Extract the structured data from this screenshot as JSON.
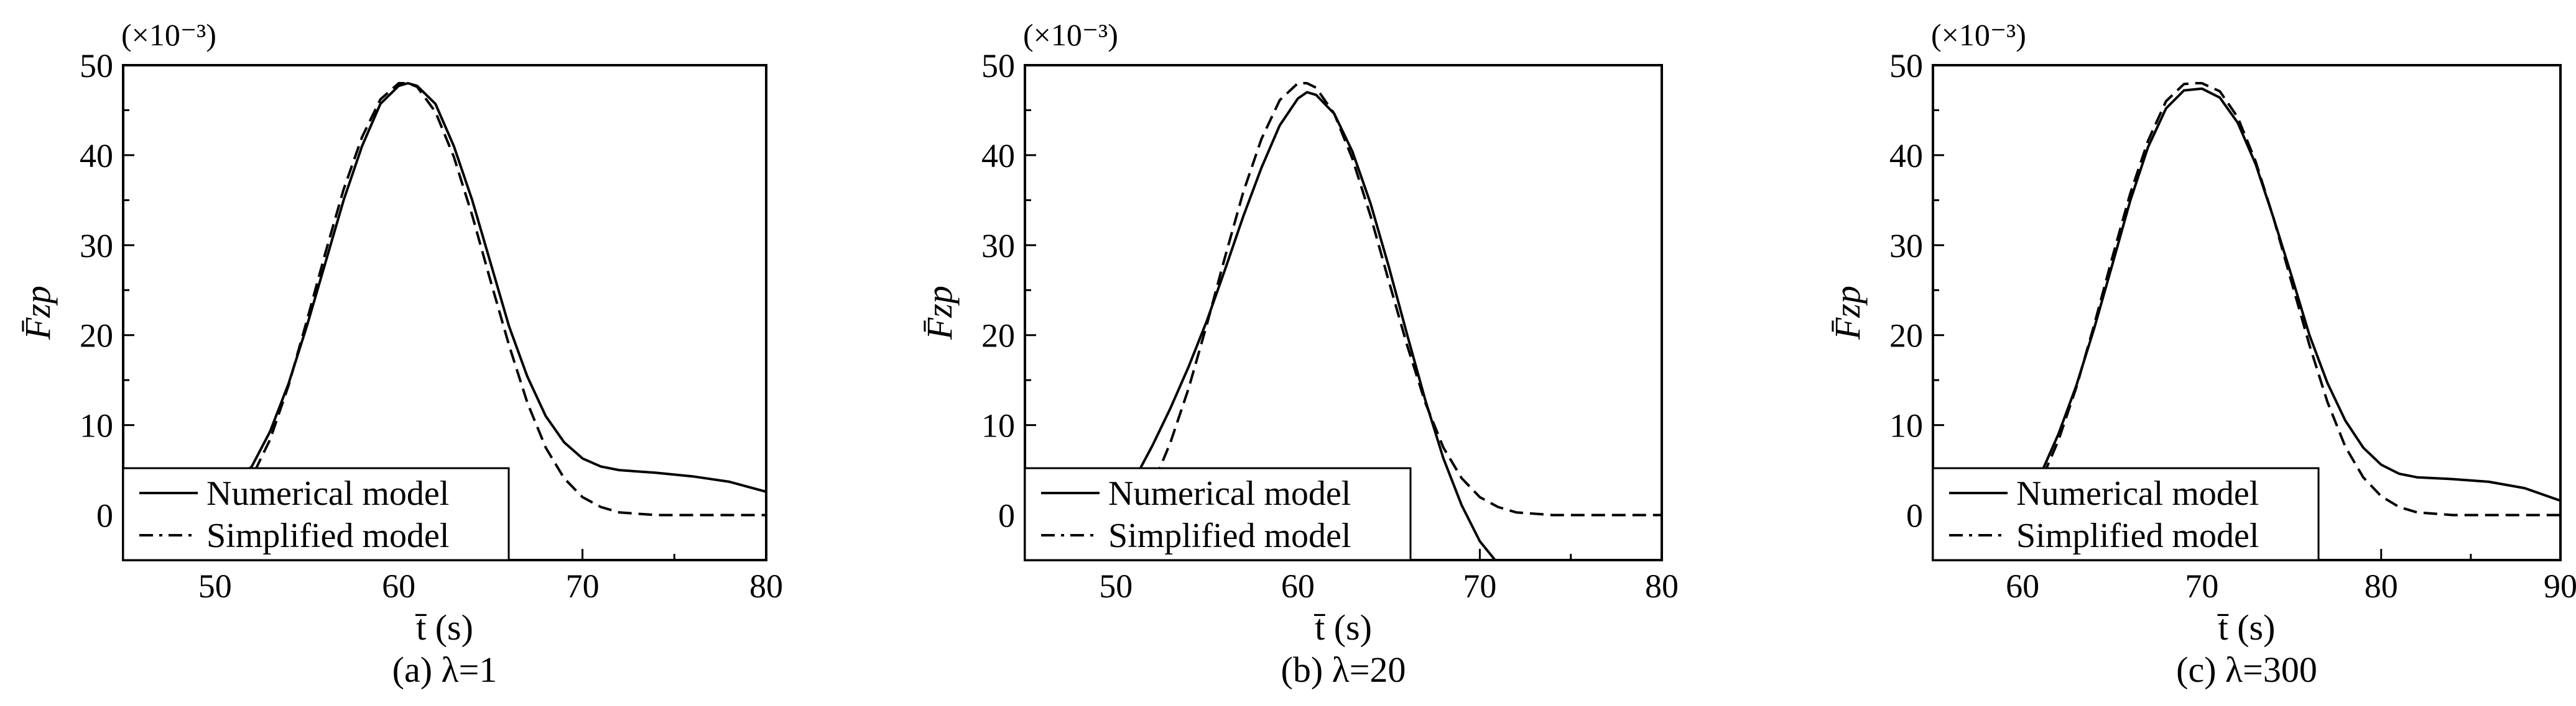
{
  "chart_data": [
    {
      "type": "line",
      "xlabel": "t̄ (s)",
      "ylabel": "F̄zp",
      "y_scale_label": "(×10⁻³)",
      "caption": "(a) λ=1",
      "xlim": [
        45,
        80
      ],
      "ylim": [
        -5,
        50
      ],
      "xticks": [
        "50",
        "60",
        "70",
        "80"
      ],
      "yticks": [
        "0",
        "10",
        "20",
        "30",
        "40",
        "50"
      ],
      "legend_position": "bottom-left",
      "series": [
        {
          "name": "Numerical model",
          "style": "solid",
          "x": [
            45,
            48,
            50,
            51.5,
            52,
            53,
            54,
            55,
            56,
            57,
            58,
            59,
            60,
            60.5,
            61,
            62,
            63,
            64,
            65,
            66,
            67,
            68,
            69,
            70,
            71,
            72,
            74,
            76,
            78,
            80
          ],
          "y": [
            -5,
            -3,
            -0.5,
            4.5,
            5.4,
            9.3,
            14.6,
            21,
            28,
            35,
            41,
            45.7,
            47.7,
            48,
            47.7,
            45.7,
            41,
            35,
            28,
            21,
            15.4,
            11,
            8.1,
            6.3,
            5.4,
            5,
            4.7,
            4.3,
            3.7,
            2.6
          ]
        },
        {
          "name": "Simplified model",
          "style": "dashed",
          "x": [
            45,
            48,
            50,
            51.5,
            52,
            53,
            54,
            55,
            56,
            57,
            58,
            59,
            60,
            60.5,
            61,
            62,
            63,
            64,
            65,
            66,
            67,
            68,
            69,
            70,
            71,
            72,
            74,
            76,
            78,
            80
          ],
          "y": [
            -5,
            -3,
            -0.5,
            3.2,
            4.2,
            8.4,
            14.4,
            21.6,
            29.1,
            36.2,
            42,
            46.2,
            48,
            48,
            47.6,
            44.8,
            39.8,
            33.3,
            26,
            18.9,
            12.5,
            7.5,
            4.1,
            2,
            0.9,
            0.3,
            0,
            0,
            0,
            0
          ]
        }
      ]
    },
    {
      "type": "line",
      "xlabel": "t̄ (s)",
      "ylabel": "F̄zp",
      "y_scale_label": "(×10⁻³)",
      "caption": "(b) λ=20",
      "xlim": [
        45,
        80
      ],
      "ylim": [
        -5,
        50
      ],
      "xticks": [
        "50",
        "60",
        "70",
        "80"
      ],
      "yticks": [
        "0",
        "10",
        "20",
        "30",
        "40",
        "50"
      ],
      "legend_position": "bottom-left",
      "series": [
        {
          "name": "Numerical model",
          "style": "solid",
          "x": [
            49.3,
            50,
            51,
            52,
            53,
            54,
            55,
            56,
            57,
            58,
            59,
            60,
            60.5,
            61,
            62,
            63,
            64,
            65,
            66,
            67,
            68,
            69,
            70,
            71,
            72
          ],
          "y": [
            -5,
            -0.7,
            3.9,
            7.7,
            11.9,
            16.5,
            21.6,
            27.3,
            33.2,
            38.6,
            43.3,
            46.3,
            47,
            46.7,
            44.6,
            40.4,
            34.6,
            27.6,
            20.1,
            12.8,
            6.3,
            1.1,
            -2.9,
            -5.4,
            -6
          ]
        },
        {
          "name": "Simplified model",
          "style": "dashed",
          "x": [
            51.3,
            52,
            53,
            54,
            55,
            56,
            57,
            58,
            59,
            60,
            60.5,
            61,
            62,
            63,
            64,
            65,
            66,
            67,
            68,
            69,
            70,
            71,
            72,
            74,
            76,
            78,
            80
          ],
          "y": [
            -5,
            3.2,
            8.1,
            14.1,
            21.2,
            28.7,
            35.9,
            41.8,
            46.1,
            48,
            48,
            47.5,
            44.6,
            39.6,
            33.2,
            26,
            18.9,
            12.5,
            7.5,
            4.1,
            2,
            0.9,
            0.3,
            0,
            0,
            0,
            0
          ]
        }
      ]
    },
    {
      "type": "line",
      "xlabel": "t̄ (s)",
      "ylabel": "F̄zp",
      "y_scale_label": "(×10⁻³)",
      "caption": "(c) λ=300",
      "xlim": [
        55,
        90
      ],
      "ylim": [
        -5,
        50
      ],
      "xticks": [
        "60",
        "70",
        "80",
        "90"
      ],
      "yticks": [
        "0",
        "10",
        "20",
        "30",
        "40",
        "50"
      ],
      "legend_position": "bottom-left",
      "series": [
        {
          "name": "Numerical model",
          "style": "solid",
          "x": [
            55,
            58,
            60,
            61,
            62,
            63,
            64,
            65,
            66,
            67,
            68,
            69,
            70,
            71,
            72,
            73,
            74,
            75,
            76,
            77,
            78,
            79,
            80,
            81,
            82,
            84,
            86,
            88,
            90
          ],
          "y": [
            -5,
            -2,
            0.5,
            4.5,
            9,
            14.4,
            20.8,
            27.8,
            34.9,
            40.9,
            45.2,
            47.2,
            47.4,
            46.4,
            43.6,
            39,
            33,
            26.6,
            20,
            14.7,
            10.5,
            7.5,
            5.6,
            4.6,
            4.2,
            4,
            3.7,
            3,
            1.6
          ]
        },
        {
          "name": "Simplified model",
          "style": "dashed",
          "x": [
            55,
            58,
            60,
            61,
            62,
            63,
            64,
            65,
            66,
            67,
            68,
            69,
            69.5,
            70,
            71,
            72,
            73,
            74,
            75,
            76,
            77,
            78,
            79,
            80,
            81,
            82,
            84,
            86,
            88,
            90
          ],
          "y": [
            -5,
            -2,
            0.5,
            3.7,
            8.3,
            14.2,
            21.2,
            28.6,
            35.7,
            41.6,
            46,
            47.9,
            48,
            48,
            47.1,
            44.2,
            39.3,
            33,
            25.9,
            18.9,
            12.6,
            7.6,
            4.2,
            2.1,
            0.9,
            0.3,
            0,
            0,
            0,
            0
          ]
        }
      ]
    }
  ]
}
